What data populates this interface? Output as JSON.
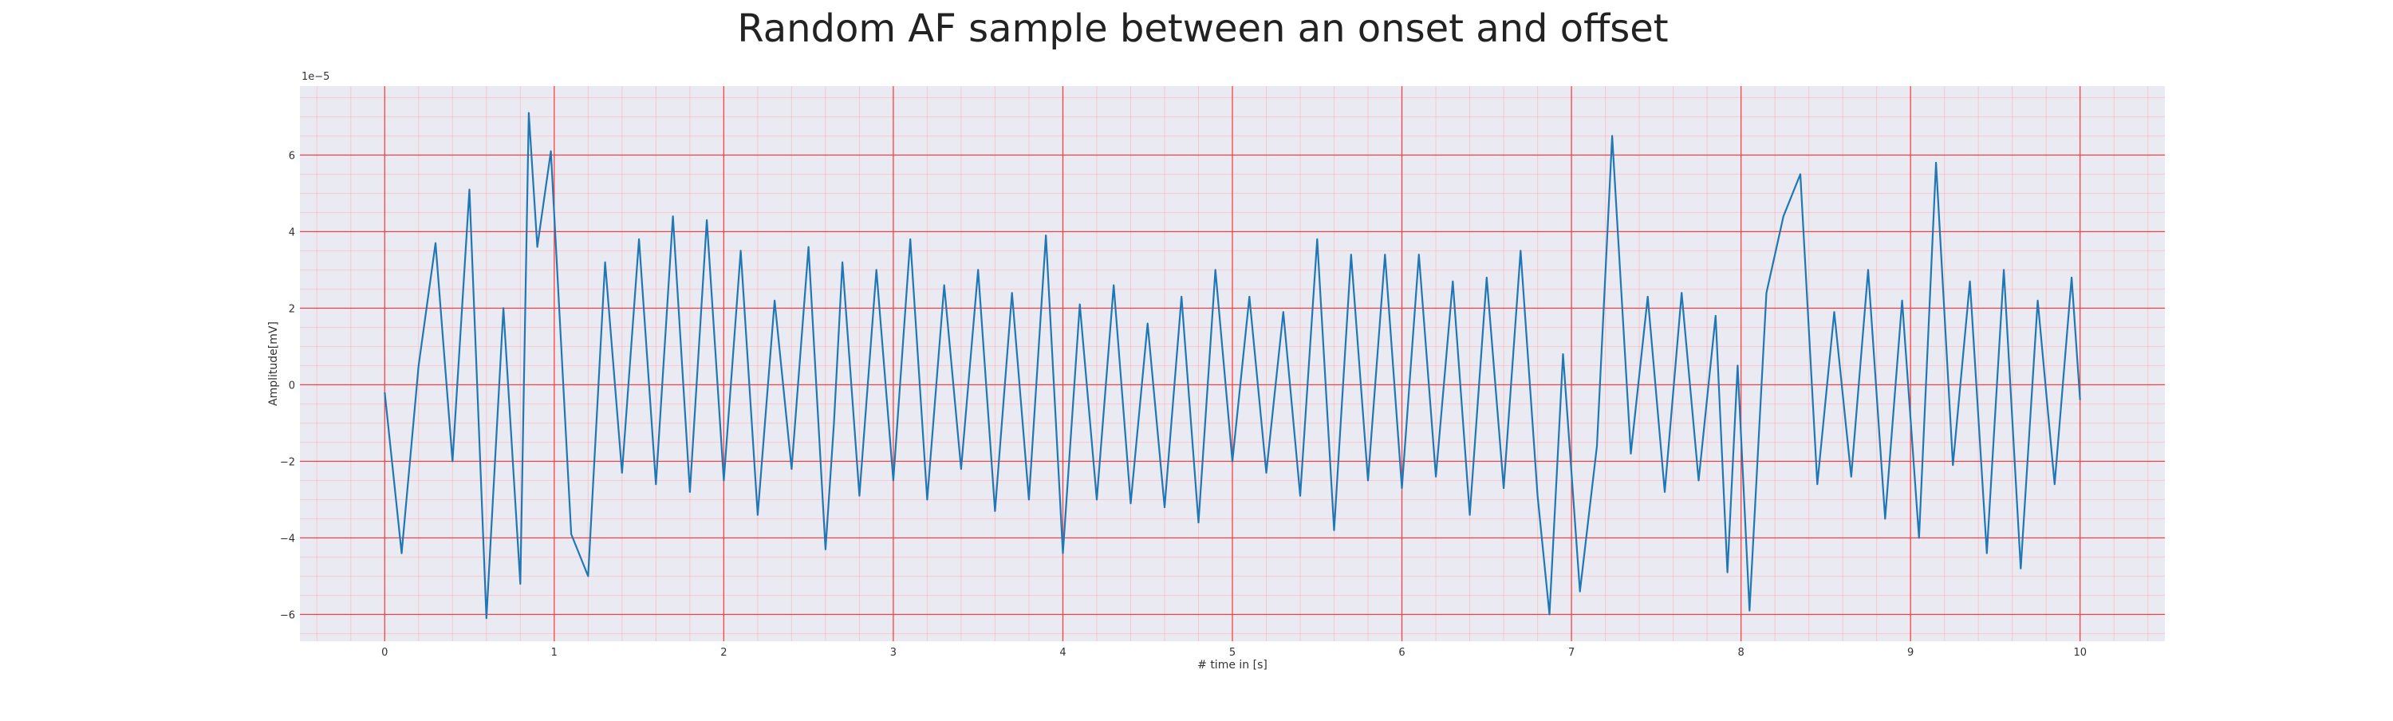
{
  "chart_data": {
    "type": "line",
    "title": "Random AF sample between an onset and offset",
    "xlabel": "# time in [s]",
    "ylabel": "Amplitude[mV]",
    "y_offset_label": "1e−5",
    "xlim": [
      -0.5,
      10.5
    ],
    "ylim": [
      -6.7,
      7.8
    ],
    "x_ticks": [
      0,
      1,
      2,
      3,
      4,
      5,
      6,
      7,
      8,
      9,
      10
    ],
    "x_tick_labels": [
      "0",
      "1",
      "2",
      "3",
      "4",
      "5",
      "6",
      "7",
      "8",
      "9",
      "10"
    ],
    "y_ticks": [
      -6,
      -4,
      -2,
      0,
      2,
      4,
      6
    ],
    "y_tick_labels": [
      "−6",
      "−4",
      "−2",
      "0",
      "2",
      "4",
      "6"
    ],
    "grid": true,
    "series": [
      {
        "color": "#1f77b4",
        "x": [
          0,
          0.1,
          0.2,
          0.3,
          0.4,
          0.5,
          0.6,
          0.7,
          0.8,
          0.85,
          0.9,
          0.98,
          1.1,
          1.2,
          1.3,
          1.4,
          1.5,
          1.6,
          1.7,
          1.8,
          1.9,
          2.0,
          2.1,
          2.2,
          2.3,
          2.4,
          2.5,
          2.6,
          2.65,
          2.7,
          2.8,
          2.9,
          3.0,
          3.1,
          3.2,
          3.3,
          3.4,
          3.5,
          3.6,
          3.7,
          3.8,
          3.9,
          4.0,
          4.1,
          4.2,
          4.3,
          4.4,
          4.5,
          4.6,
          4.7,
          4.8,
          4.9,
          5.0,
          5.1,
          5.2,
          5.3,
          5.4,
          5.5,
          5.6,
          5.7,
          5.8,
          5.9,
          6.0,
          6.1,
          6.2,
          6.3,
          6.4,
          6.5,
          6.6,
          6.7,
          6.8,
          6.87,
          6.95,
          7.05,
          7.15,
          7.24,
          7.35,
          7.45,
          7.55,
          7.65,
          7.75,
          7.85,
          7.92,
          7.98,
          8.05,
          8.15,
          8.25,
          8.35,
          8.45,
          8.55,
          8.65,
          8.75,
          8.85,
          8.95,
          9.05,
          9.15,
          9.25,
          9.35,
          9.45,
          9.55,
          9.65,
          9.75,
          9.85,
          9.95,
          10.0
        ],
        "values": [
          -0.2,
          -4.4,
          0.5,
          3.7,
          -2.0,
          5.1,
          -6.1,
          2.0,
          -5.2,
          7.1,
          3.6,
          6.1,
          -3.9,
          -5.0,
          3.2,
          -2.3,
          3.8,
          -2.6,
          4.4,
          -2.8,
          4.3,
          -2.5,
          3.5,
          -3.4,
          2.2,
          -2.2,
          3.6,
          -4.3,
          -1.0,
          3.2,
          -2.9,
          3.0,
          -2.5,
          3.8,
          -3.0,
          2.6,
          -2.2,
          3.0,
          -3.3,
          2.4,
          -3.0,
          3.9,
          -4.4,
          2.1,
          -3.0,
          2.6,
          -3.1,
          1.6,
          -3.2,
          2.3,
          -3.6,
          3.0,
          -2.0,
          2.3,
          -2.3,
          1.9,
          -2.9,
          3.8,
          -3.8,
          3.4,
          -2.5,
          3.4,
          -2.7,
          3.4,
          -2.4,
          2.7,
          -3.4,
          2.8,
          -2.7,
          3.5,
          -2.9,
          -6.0,
          0.8,
          -5.4,
          -1.6,
          6.5,
          -1.8,
          2.3,
          -2.8,
          2.4,
          -2.5,
          1.8,
          -4.9,
          0.5,
          -5.9,
          2.4,
          4.4,
          5.5,
          -2.6,
          1.9,
          -2.4,
          3.0,
          -3.5,
          2.2,
          -4.0,
          5.8,
          -2.1,
          2.7,
          -4.4,
          3.0,
          -4.8,
          2.2,
          -2.6,
          2.8,
          -0.4
        ]
      }
    ]
  }
}
